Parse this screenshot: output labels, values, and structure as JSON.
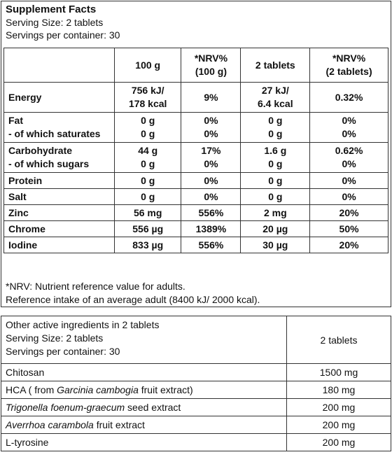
{
  "facts": {
    "title": "Supplement Facts",
    "serving_size": "Serving Size: 2 tablets",
    "servings_per_container": "Servings per container: 30",
    "columns": [
      "",
      "100 g",
      "*NRV%\n(100 g)",
      "2 tablets",
      "*NRV%\n(2 tablets)"
    ],
    "col_100g": "100 g",
    "col_nrv100_a": "*NRV%",
    "col_nrv100_b": "(100 g)",
    "col_2tab": "2 tablets",
    "col_nrv2_a": "*NRV%",
    "col_nrv2_b": "(2 tablets)",
    "rows": [
      {
        "label": [
          "Energy"
        ],
        "v100": [
          "756 kJ/",
          "178 kcal"
        ],
        "nrv100": [
          "9%"
        ],
        "v2": [
          "27 kJ/",
          "6.4 kcal"
        ],
        "nrv2": [
          "0.32%"
        ]
      },
      {
        "label": [
          "Fat",
          "- of which saturates"
        ],
        "v100": [
          "0 g",
          "0 g"
        ],
        "nrv100": [
          "0%",
          "0%"
        ],
        "v2": [
          "0 g",
          "0 g"
        ],
        "nrv2": [
          "0%",
          "0%"
        ]
      },
      {
        "label": [
          "Carbohydrate",
          "- of which sugars"
        ],
        "v100": [
          "44 g",
          "0 g"
        ],
        "nrv100": [
          "17%",
          "0%"
        ],
        "v2": [
          "1.6 g",
          "0 g"
        ],
        "nrv2": [
          "0.62%",
          "0%"
        ]
      },
      {
        "label": [
          "Protein"
        ],
        "v100": [
          "0 g"
        ],
        "nrv100": [
          "0%"
        ],
        "v2": [
          "0 g"
        ],
        "nrv2": [
          "0%"
        ]
      },
      {
        "label": [
          "Salt"
        ],
        "v100": [
          "0 g"
        ],
        "nrv100": [
          "0%"
        ],
        "v2": [
          "0 g"
        ],
        "nrv2": [
          "0%"
        ]
      },
      {
        "label": [
          "Zinc"
        ],
        "v100": [
          "56 mg"
        ],
        "nrv100": [
          "556%"
        ],
        "v2": [
          "2 mg"
        ],
        "nrv2": [
          "20%"
        ]
      },
      {
        "label": [
          "Chrome"
        ],
        "v100": [
          "556 µg"
        ],
        "nrv100": [
          "1389%"
        ],
        "v2": [
          "20 µg"
        ],
        "nrv2": [
          "50%"
        ]
      },
      {
        "label": [
          "Iodine"
        ],
        "v100": [
          "833 µg"
        ],
        "nrv100": [
          "556%"
        ],
        "v2": [
          "30 µg"
        ],
        "nrv2": [
          "20%"
        ]
      }
    ],
    "note1": "*NRV: Nutrient reference value for adults.",
    "note2": "Reference intake of an average adult (8400 kJ/ 2000 kcal)."
  },
  "other": {
    "header_line1": "Other active ingredients in 2 tablets",
    "header_line2": "Serving Size: 2 tablets",
    "header_line3": "Servings per container: 30",
    "header_value": "2 tablets",
    "rows": [
      {
        "parts": [
          {
            "t": "Chitosan",
            "i": false
          }
        ],
        "value": "1500 mg"
      },
      {
        "parts": [
          {
            "t": "HCA ( from ",
            "i": false
          },
          {
            "t": "Garcinia cambogia",
            "i": true
          },
          {
            "t": " fruit extract)",
            "i": false
          }
        ],
        "value": "180 mg"
      },
      {
        "parts": [
          {
            "t": "Trigonella foenum-graecum",
            "i": true
          },
          {
            "t": " seed extract",
            "i": false
          }
        ],
        "value": "200 mg"
      },
      {
        "parts": [
          {
            "t": "Averrhoa carambola",
            "i": true
          },
          {
            "t": " fruit extract",
            "i": false
          }
        ],
        "value": "200 mg"
      },
      {
        "parts": [
          {
            "t": "L-tyrosine",
            "i": false
          }
        ],
        "value": "200 mg"
      }
    ]
  }
}
